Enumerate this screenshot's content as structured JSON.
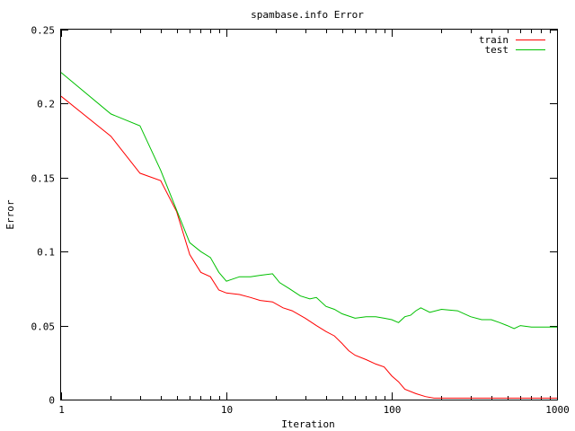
{
  "chart_data": {
    "type": "line",
    "title": "spambase.info Error",
    "xlabel": "Iteration",
    "ylabel": "Error",
    "xscale": "log",
    "xlim": [
      1,
      1000
    ],
    "ylim": [
      0,
      0.25
    ],
    "x_ticks": [
      1,
      10,
      100,
      1000
    ],
    "x_tick_labels": [
      "1",
      "10",
      "100",
      "1000"
    ],
    "y_ticks": [
      0,
      0.05,
      0.1,
      0.15,
      0.2,
      0.25
    ],
    "y_tick_labels": [
      "0",
      "0.05",
      "0.1",
      "0.15",
      "0.2",
      "0.25"
    ],
    "grid": false,
    "legend": "top-right",
    "series": [
      {
        "name": "train",
        "color": "#ff0000",
        "points": [
          [
            1,
            0.205
          ],
          [
            2,
            0.178
          ],
          [
            3,
            0.153
          ],
          [
            4,
            0.148
          ],
          [
            5,
            0.127
          ],
          [
            6,
            0.098
          ],
          [
            7,
            0.086
          ],
          [
            8,
            0.083
          ],
          [
            9,
            0.074
          ],
          [
            10,
            0.072
          ],
          [
            12,
            0.071
          ],
          [
            14,
            0.069
          ],
          [
            16,
            0.067
          ],
          [
            19,
            0.066
          ],
          [
            22,
            0.062
          ],
          [
            25,
            0.06
          ],
          [
            30,
            0.055
          ],
          [
            35,
            0.05
          ],
          [
            40,
            0.046
          ],
          [
            45,
            0.043
          ],
          [
            50,
            0.038
          ],
          [
            55,
            0.033
          ],
          [
            60,
            0.03
          ],
          [
            70,
            0.027
          ],
          [
            80,
            0.024
          ],
          [
            90,
            0.022
          ],
          [
            100,
            0.016
          ],
          [
            110,
            0.012
          ],
          [
            120,
            0.007
          ],
          [
            140,
            0.004
          ],
          [
            160,
            0.002
          ],
          [
            180,
            0.001
          ],
          [
            250,
            0.001
          ],
          [
            500,
            0.001
          ],
          [
            1000,
            0.001
          ]
        ]
      },
      {
        "name": "test",
        "color": "#00c000",
        "points": [
          [
            1,
            0.221
          ],
          [
            2,
            0.193
          ],
          [
            3,
            0.185
          ],
          [
            4,
            0.155
          ],
          [
            5,
            0.128
          ],
          [
            6,
            0.106
          ],
          [
            7,
            0.1
          ],
          [
            8,
            0.096
          ],
          [
            9,
            0.086
          ],
          [
            10,
            0.08
          ],
          [
            12,
            0.083
          ],
          [
            14,
            0.083
          ],
          [
            16,
            0.084
          ],
          [
            19,
            0.085
          ],
          [
            21,
            0.079
          ],
          [
            24,
            0.075
          ],
          [
            28,
            0.07
          ],
          [
            32,
            0.068
          ],
          [
            35,
            0.069
          ],
          [
            40,
            0.063
          ],
          [
            45,
            0.061
          ],
          [
            50,
            0.058
          ],
          [
            60,
            0.055
          ],
          [
            70,
            0.056
          ],
          [
            80,
            0.056
          ],
          [
            90,
            0.055
          ],
          [
            100,
            0.054
          ],
          [
            110,
            0.052
          ],
          [
            120,
            0.056
          ],
          [
            130,
            0.057
          ],
          [
            140,
            0.06
          ],
          [
            150,
            0.062
          ],
          [
            170,
            0.059
          ],
          [
            200,
            0.061
          ],
          [
            250,
            0.06
          ],
          [
            300,
            0.056
          ],
          [
            350,
            0.054
          ],
          [
            400,
            0.054
          ],
          [
            450,
            0.052
          ],
          [
            500,
            0.05
          ],
          [
            550,
            0.048
          ],
          [
            600,
            0.05
          ],
          [
            700,
            0.049
          ],
          [
            800,
            0.049
          ],
          [
            1000,
            0.049
          ]
        ]
      }
    ]
  }
}
